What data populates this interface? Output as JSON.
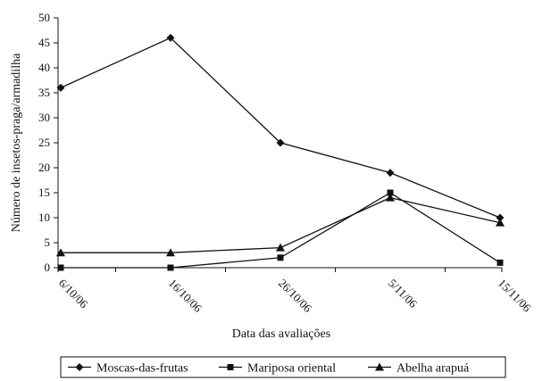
{
  "chart_data": {
    "type": "line",
    "categories": [
      "6/10/06",
      "16/10/06",
      "26/10/06",
      "5/11/06",
      "15/11/06"
    ],
    "series": [
      {
        "name": "Moscas-das-frutas",
        "marker": "diamond",
        "values": [
          36,
          46,
          25,
          19,
          10
        ]
      },
      {
        "name": "Mariposa oriental",
        "marker": "square",
        "values": [
          0,
          0,
          2,
          15,
          1
        ]
      },
      {
        "name": "Abelha arapuá",
        "marker": "triangle",
        "values": [
          3,
          3,
          4,
          14,
          9
        ]
      }
    ],
    "xlabel": "Data das avaliações",
    "ylabel": "Número de insetos-praga/armadilha",
    "ylim": [
      0,
      50
    ],
    "yticks": [
      0,
      5,
      10,
      15,
      20,
      25,
      30,
      35,
      40,
      45,
      50
    ],
    "grid": false,
    "legend_position": "bottom",
    "colors": {
      "line": "#111111",
      "marker": "#111111",
      "background": "#ffffff"
    }
  }
}
